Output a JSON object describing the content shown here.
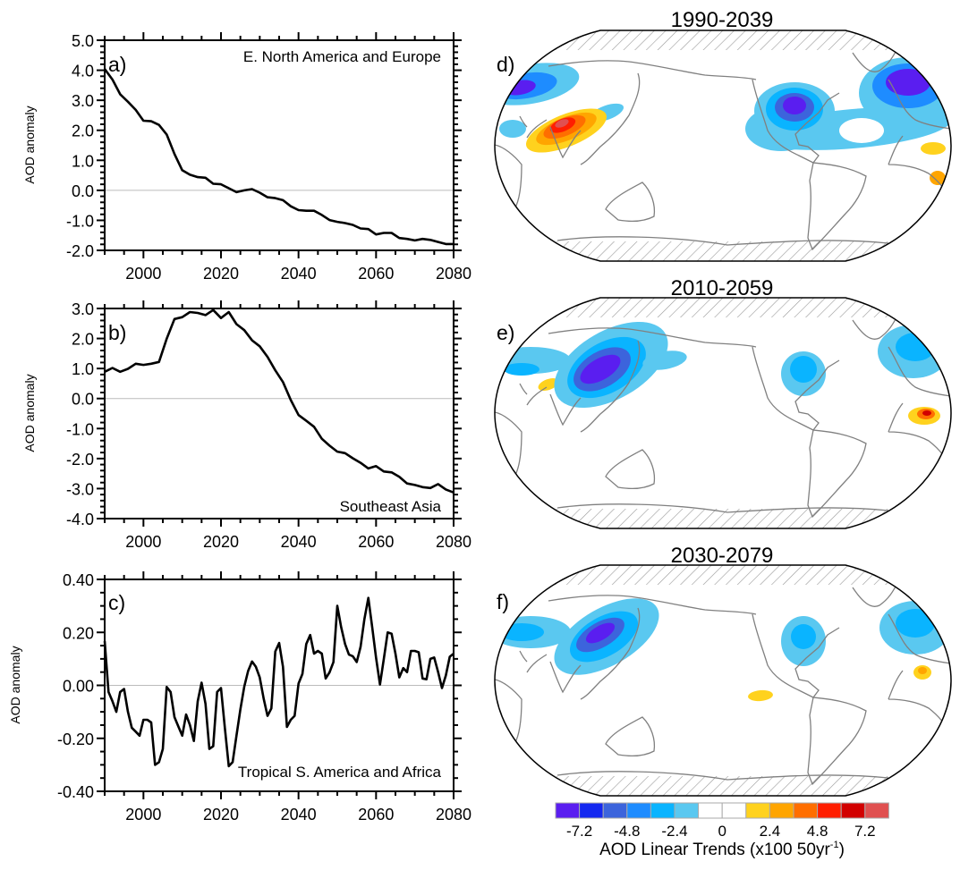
{
  "chart_data": [
    {
      "type": "line",
      "panel_label": "a)",
      "annotation": "E. North America and Europe",
      "ylabel": "AOD anomaly",
      "xlim": [
        1990,
        2080
      ],
      "ylim": [
        -2.0,
        5.0
      ],
      "xticks": [
        2000,
        2020,
        2040,
        2060,
        2080
      ],
      "xtick_labels": [
        "2000",
        "2020",
        "2040",
        "2060",
        "2080"
      ],
      "yticks": [
        -2,
        -1,
        0,
        1,
        2,
        3,
        4,
        5
      ],
      "ytick_labels": [
        "-2.0",
        "-1.0",
        "0.0",
        "1.0",
        "2.0",
        "3.0",
        "4.0",
        "5.0"
      ],
      "reference_line": 0,
      "x": [
        1990,
        1992,
        1994,
        1996,
        1998,
        2000,
        2002,
        2004,
        2006,
        2008,
        2010,
        2012,
        2014,
        2016,
        2018,
        2020,
        2022,
        2024,
        2026,
        2028,
        2030,
        2032,
        2034,
        2036,
        2038,
        2040,
        2042,
        2044,
        2046,
        2048,
        2050,
        2052,
        2054,
        2056,
        2058,
        2060,
        2062,
        2064,
        2066,
        2068,
        2070,
        2072,
        2074,
        2076,
        2078,
        2080
      ],
      "y": [
        4.04,
        3.69,
        3.2,
        2.95,
        2.68,
        2.32,
        2.3,
        2.18,
        1.86,
        1.21,
        0.67,
        0.52,
        0.44,
        0.42,
        0.22,
        0.2,
        0.07,
        -0.06,
        0.0,
        0.04,
        -0.08,
        -0.23,
        -0.26,
        -0.33,
        -0.53,
        -0.66,
        -0.68,
        -0.68,
        -0.82,
        -0.99,
        -1.05,
        -1.09,
        -1.15,
        -1.27,
        -1.29,
        -1.47,
        -1.42,
        -1.42,
        -1.59,
        -1.62,
        -1.67,
        -1.62,
        -1.65,
        -1.72,
        -1.79,
        -1.79
      ]
    },
    {
      "type": "line",
      "panel_label": "b)",
      "annotation": "Southeast Asia",
      "ylabel": "AOD anomaly",
      "xlim": [
        1990,
        2080
      ],
      "ylim": [
        -4.0,
        3.0
      ],
      "xticks": [
        2000,
        2020,
        2040,
        2060,
        2080
      ],
      "xtick_labels": [
        "2000",
        "2020",
        "2040",
        "2060",
        "2080"
      ],
      "yticks": [
        -4,
        -3,
        -2,
        -1,
        0,
        1,
        2,
        3
      ],
      "ytick_labels": [
        "-4.0",
        "-3.0",
        "-2.0",
        "-1.0",
        "0.0",
        "1.0",
        "2.0",
        "3.0"
      ],
      "reference_line": 0,
      "x": [
        1990,
        1992,
        1994,
        1996,
        1998,
        2000,
        2002,
        2004,
        2006,
        2008,
        2010,
        2012,
        2014,
        2016,
        2018,
        2020,
        2022,
        2024,
        2026,
        2028,
        2030,
        2032,
        2034,
        2036,
        2038,
        2040,
        2042,
        2044,
        2046,
        2048,
        2050,
        2052,
        2054,
        2056,
        2058,
        2060,
        2062,
        2064,
        2066,
        2068,
        2070,
        2072,
        2074,
        2076,
        2078,
        2080
      ],
      "y": [
        0.89,
        1.02,
        0.89,
        0.99,
        1.16,
        1.12,
        1.16,
        1.22,
        1.99,
        2.65,
        2.71,
        2.88,
        2.85,
        2.78,
        2.95,
        2.68,
        2.88,
        2.48,
        2.28,
        1.94,
        1.74,
        1.39,
        0.94,
        0.55,
        -0.05,
        -0.55,
        -0.74,
        -0.94,
        -1.34,
        -1.57,
        -1.77,
        -1.82,
        -1.99,
        -2.14,
        -2.33,
        -2.25,
        -2.43,
        -2.46,
        -2.61,
        -2.83,
        -2.88,
        -2.95,
        -2.98,
        -2.85,
        -3.03,
        -3.13
      ]
    },
    {
      "type": "line",
      "panel_label": "c)",
      "annotation": "Tropical S. America and Africa",
      "ylabel": "AOD anomaly",
      "xlim": [
        1990,
        2080
      ],
      "ylim": [
        -0.4,
        0.4
      ],
      "xticks": [
        2000,
        2020,
        2040,
        2060,
        2080
      ],
      "xtick_labels": [
        "2000",
        "2020",
        "2040",
        "2060",
        "2080"
      ],
      "yticks": [
        -0.4,
        -0.2,
        0,
        0.2,
        0.4
      ],
      "ytick_labels": [
        "-0.40",
        "-0.20",
        "0.00",
        "0.20",
        "0.40"
      ],
      "reference_line": 0,
      "x": [
        1990,
        1991,
        1992,
        1993,
        1994,
        1995,
        1996,
        1997,
        1998,
        1999,
        2000,
        2001,
        2002,
        2003,
        2004,
        2005,
        2006,
        2007,
        2008,
        2009,
        2010,
        2011,
        2012,
        2013,
        2014,
        2015,
        2016,
        2017,
        2018,
        2019,
        2020,
        2021,
        2022,
        2023,
        2024,
        2025,
        2026,
        2027,
        2028,
        2029,
        2030,
        2031,
        2032,
        2033,
        2034,
        2035,
        2036,
        2037,
        2038,
        2039,
        2040,
        2041,
        2042,
        2043,
        2044,
        2045,
        2046,
        2047,
        2048,
        2049,
        2050,
        2051,
        2052,
        2053,
        2054,
        2055,
        2056,
        2057,
        2058,
        2059,
        2060,
        2061,
        2062,
        2063,
        2064,
        2065,
        2066,
        2067,
        2068,
        2069,
        2070,
        2071,
        2072,
        2073,
        2074,
        2075,
        2076,
        2077,
        2078,
        2079,
        2080
      ],
      "y": [
        0.167,
        -0.025,
        -0.06,
        -0.1,
        -0.025,
        -0.014,
        -0.1,
        -0.16,
        -0.175,
        -0.19,
        -0.13,
        -0.13,
        -0.14,
        -0.3,
        -0.29,
        -0.24,
        -0.006,
        -0.025,
        -0.12,
        -0.155,
        -0.19,
        -0.11,
        -0.15,
        -0.21,
        -0.06,
        0.01,
        -0.07,
        -0.24,
        -0.23,
        -0.025,
        -0.01,
        -0.16,
        -0.305,
        -0.29,
        -0.19,
        -0.09,
        -0.005,
        0.054,
        0.09,
        0.07,
        0.03,
        -0.05,
        -0.115,
        -0.087,
        0.128,
        0.16,
        0.07,
        -0.157,
        -0.13,
        -0.115,
        0.007,
        0.043,
        0.156,
        0.19,
        0.12,
        0.13,
        0.12,
        0.026,
        0.049,
        0.088,
        0.3,
        0.22,
        0.156,
        0.116,
        0.11,
        0.088,
        0.145,
        0.25,
        0.33,
        0.22,
        0.105,
        0.003,
        0.1,
        0.2,
        0.195,
        0.12,
        0.03,
        0.065,
        0.05,
        0.13,
        0.13,
        0.125,
        0.026,
        0.023,
        0.1,
        0.105,
        0.05,
        -0.01,
        0.037,
        0.108,
        0.12
      ]
    }
  ],
  "maps": [
    {
      "panel_label": "d)",
      "title": "1990-2039"
    },
    {
      "panel_label": "e)",
      "title": "2010-2059"
    },
    {
      "panel_label": "f)",
      "title": "2030-2079"
    }
  ],
  "colorbar": {
    "colors": [
      "#5a1ef0",
      "#1428f0",
      "#3c64dc",
      "#1e8cff",
      "#0ab4ff",
      "#5ac8f0",
      "#ffffff",
      "#ffffff",
      "#ffd21e",
      "#ffa500",
      "#ff6e00",
      "#ff1e00",
      "#d20000",
      "#e05050"
    ],
    "labels": [
      "-7.2",
      "-4.8",
      "-2.4",
      "0",
      "2.4",
      "4.8",
      "7.2"
    ],
    "title_main": "AOD Linear Trends (x100 50yr",
    "title_sup": "-1",
    "title_end": ")"
  },
  "colors": {
    "line": "#000000",
    "reference_line": "#bbbbbb",
    "coastline": "#808080",
    "hatch": "#9a9a9a"
  }
}
